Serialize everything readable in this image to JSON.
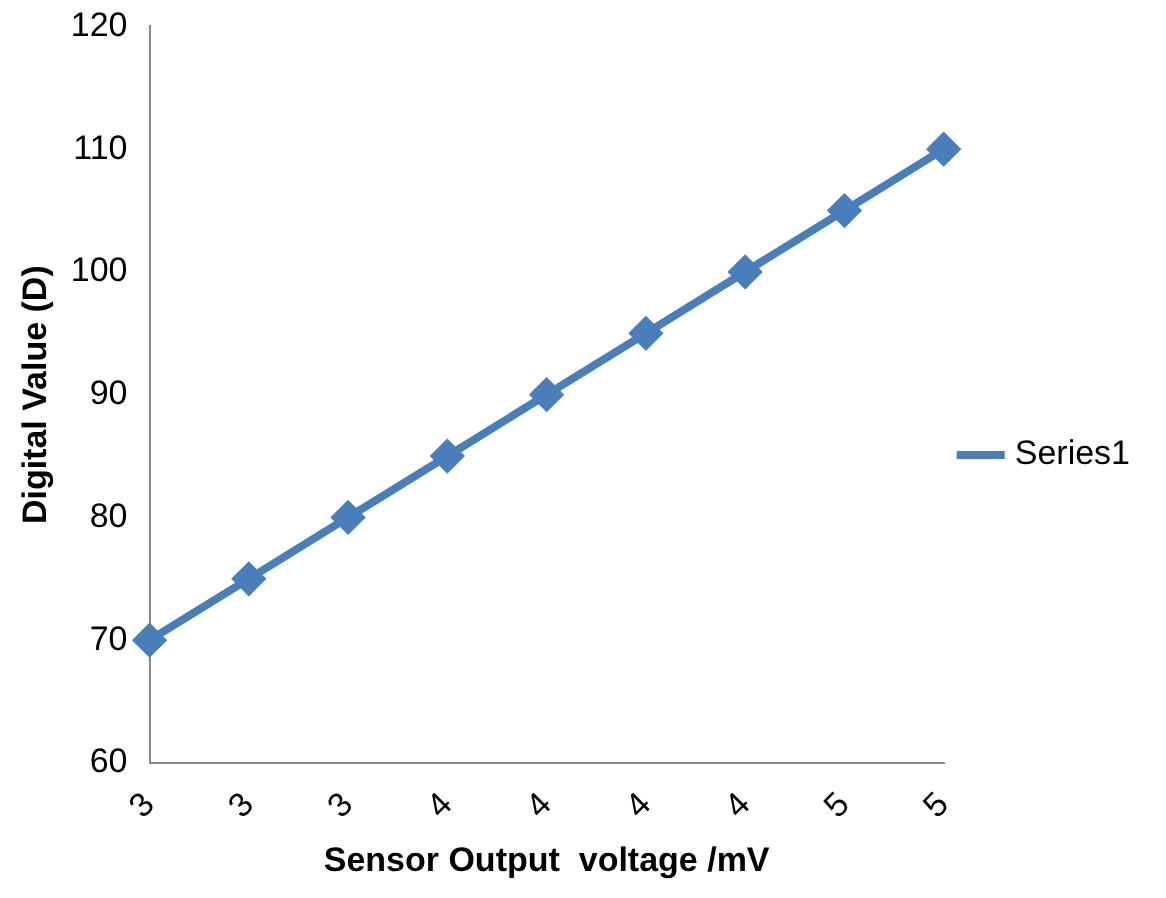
{
  "chart_data": {
    "type": "line",
    "xlabel": "Sensor Output  voltage /mV",
    "ylabel": "Digital Value (D)",
    "categories": [
      "3",
      "3",
      "3",
      "4",
      "4",
      "4",
      "4",
      "5",
      "5"
    ],
    "series": [
      {
        "name": "Series1",
        "color": "#4a7ebb",
        "values": [
          70,
          75,
          80,
          85,
          90,
          95,
          100,
          105,
          110
        ]
      }
    ],
    "ylim": [
      60,
      120
    ],
    "yticks": [
      60,
      70,
      80,
      90,
      100,
      110,
      120
    ],
    "grid": false,
    "legend": "right",
    "marker": "diamond",
    "line_style": "solid"
  }
}
